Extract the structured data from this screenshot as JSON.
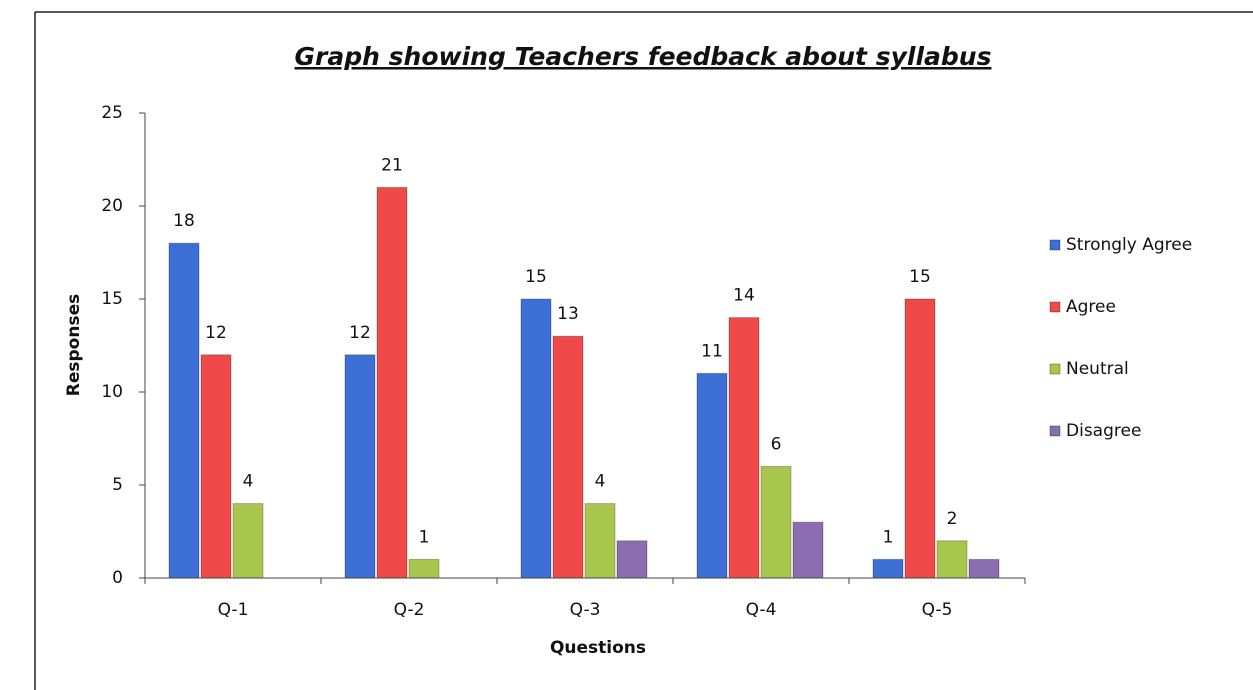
{
  "chart_data": {
    "type": "bar",
    "title": "Graph showing Teachers feedback about syllabus",
    "x_label": "Questions",
    "y_label": "Responses",
    "categories": [
      "Q-1",
      "Q-2",
      "Q-3",
      "Q-4",
      "Q-5"
    ],
    "series": [
      {
        "name": "Strongly Agree",
        "color": "#3b6fd6",
        "values": [
          18,
          12,
          15,
          11,
          1
        ],
        "show_labels": true
      },
      {
        "name": "Agree",
        "color": "#ef4a4a",
        "values": [
          12,
          21,
          13,
          14,
          15
        ],
        "show_labels": true
      },
      {
        "name": "Neutral",
        "color": "#a9c64c",
        "values": [
          4,
          1,
          4,
          6,
          2
        ],
        "show_labels": true
      },
      {
        "name": "Disagree",
        "color": "#8b6db2",
        "values": [
          0,
          0,
          2,
          3,
          1
        ],
        "show_labels": false
      }
    ],
    "ylim": [
      0,
      25
    ],
    "yticks": [
      0,
      5,
      10,
      15,
      20,
      25
    ],
    "legend": "right"
  }
}
